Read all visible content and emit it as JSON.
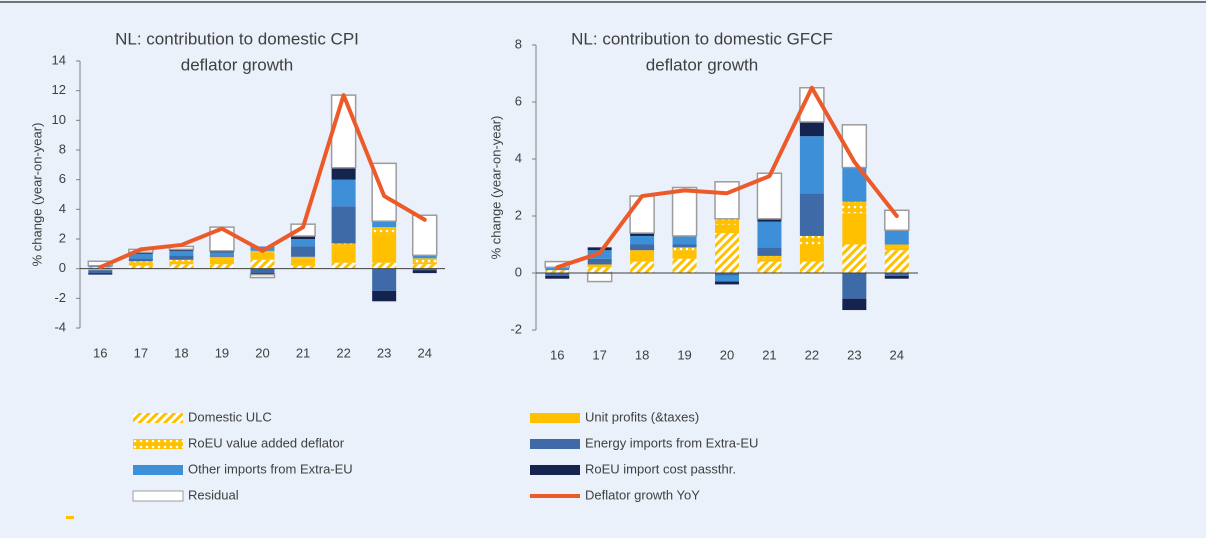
{
  "chart_data": [
    {
      "type": "bar",
      "title": [
        "NL: contribution to domestic CPI",
        "deflator growth"
      ],
      "ylabel": "% change (year-on-year)",
      "categories": [
        "16",
        "17",
        "18",
        "19",
        "20",
        "21",
        "22",
        "23",
        "24"
      ],
      "ylim": [
        -4,
        14
      ],
      "yticks": [
        -4,
        -2,
        0,
        2,
        4,
        6,
        8,
        10,
        12,
        14
      ],
      "series": [
        {
          "name": "Domestic ULC",
          "color": "#ffc000",
          "pattern": "hatch",
          "values": [
            0.1,
            0.2,
            0.3,
            0.3,
            0.6,
            0.2,
            0.4,
            0.4,
            0.3
          ]
        },
        {
          "name": "Unit profits (&taxes)",
          "color": "#ffc000",
          "values": [
            -0.1,
            0.2,
            0.2,
            0.3,
            0.5,
            0.5,
            1.1,
            1.9,
            0.1
          ]
        },
        {
          "name": "RoEU value added deflator",
          "color": "#ffc000",
          "pattern": "dots",
          "values": [
            0,
            0.1,
            0.1,
            0.2,
            0.1,
            0.1,
            0.2,
            0.5,
            0.3
          ]
        },
        {
          "name": "Energy imports from Extra-EU",
          "color": "#3e6aa8",
          "values": [
            -0.2,
            0.2,
            0.3,
            0.1,
            -0.3,
            0.7,
            2.5,
            -1.5,
            -0.1
          ]
        },
        {
          "name": "Other imports from Extra-EU",
          "color": "#3d8fd8",
          "values": [
            0.1,
            0.3,
            0.3,
            0.2,
            0.3,
            0.5,
            1.8,
            0.4,
            0.2
          ]
        },
        {
          "name": "RoEU import cost passthr.",
          "color": "#14244f",
          "values": [
            -0.1,
            0.1,
            0.1,
            0.1,
            -0.1,
            0.2,
            0.8,
            -0.7,
            -0.2
          ]
        },
        {
          "name": "Residual",
          "color": "#ffffff",
          "edgecolor": "#9c9c9c",
          "values": [
            0.3,
            0.2,
            0.2,
            1.6,
            -0.2,
            0.8,
            4.9,
            3.9,
            2.7
          ]
        },
        {
          "name": "Deflator growth YoY",
          "type": "line",
          "color": "#ec5a2a",
          "values": [
            0.1,
            1.3,
            1.6,
            2.7,
            1.2,
            2.8,
            11.7,
            4.9,
            3.3
          ]
        }
      ]
    },
    {
      "type": "bar",
      "title": [
        "NL: contribution to domestic GFCF",
        "deflator growth"
      ],
      "ylabel": "% change (year-on-year)",
      "categories": [
        "16",
        "17",
        "18",
        "19",
        "20",
        "21",
        "22",
        "23",
        "24"
      ],
      "ylim": [
        -2,
        8
      ],
      "yticks": [
        -2,
        0,
        2,
        4,
        6,
        8
      ],
      "series": [
        {
          "name": "Domestic ULC",
          "color": "#ffc000",
          "pattern": "hatch",
          "values": [
            0.1,
            0.2,
            0.4,
            0.5,
            1.4,
            0.4,
            0.4,
            1.0,
            0.8
          ]
        },
        {
          "name": "Unit profits (&taxes)",
          "color": "#ffc000",
          "values": [
            0,
            0.1,
            0.3,
            0.3,
            0.3,
            0.1,
            0.6,
            1.1,
            0.1
          ]
        },
        {
          "name": "RoEU value added deflator",
          "color": "#ffc000",
          "pattern": "dots",
          "values": [
            0,
            0,
            0.1,
            0.1,
            0.2,
            0.1,
            0.3,
            0.4,
            0.1
          ]
        },
        {
          "name": "Energy imports from Extra-EU",
          "color": "#3e6aa8",
          "values": [
            -0.1,
            0.2,
            0.2,
            0.1,
            -0.1,
            0.3,
            1.5,
            -0.9,
            -0.1
          ]
        },
        {
          "name": "Other imports from Extra-EU",
          "color": "#3d8fd8",
          "values": [
            0.1,
            0.3,
            0.3,
            0.3,
            -0.2,
            0.9,
            2.0,
            1.2,
            0.5
          ]
        },
        {
          "name": "RoEU import cost passthr.",
          "color": "#14244f",
          "values": [
            -0.1,
            0.1,
            0.1,
            0,
            -0.1,
            0.1,
            0.5,
            -0.4,
            -0.1
          ]
        },
        {
          "name": "Residual",
          "color": "#ffffff",
          "edgecolor": "#9c9c9c",
          "values": [
            0.2,
            -0.3,
            1.3,
            1.7,
            1.3,
            1.6,
            1.2,
            1.5,
            0.7
          ]
        },
        {
          "name": "Deflator growth YoY",
          "type": "line",
          "color": "#ec5a2a",
          "values": [
            0.2,
            0.7,
            2.7,
            2.9,
            2.8,
            3.4,
            6.5,
            3.9,
            2.0
          ]
        }
      ]
    }
  ]
}
